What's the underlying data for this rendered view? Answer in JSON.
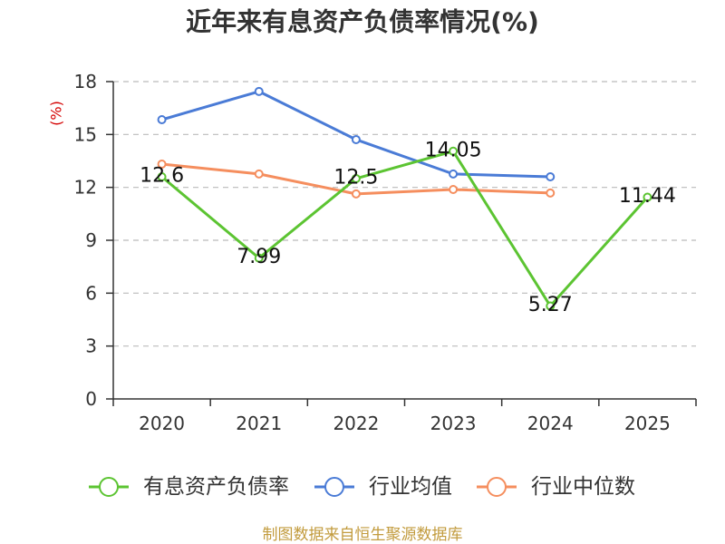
{
  "footer": "制图数据来自恒生聚源数据库",
  "chart_data": {
    "type": "line",
    "title": "近年来有息资产负债率情况(%)",
    "xlabel": "",
    "ylabel": "(%)",
    "categories": [
      "2020",
      "2021",
      "2022",
      "2023",
      "2024",
      "2025"
    ],
    "ylim": [
      0,
      18
    ],
    "yticks": [
      0,
      3,
      6,
      9,
      12,
      15,
      18
    ],
    "grid": true,
    "legend_position": "bottom",
    "series": [
      {
        "name": "有息资产负债率",
        "color": "#5cc432",
        "data_labels": true,
        "values": [
          12.6,
          7.99,
          12.5,
          14.05,
          5.27,
          11.44
        ]
      },
      {
        "name": "行业均值",
        "color": "#4a7bd6",
        "data_labels": false,
        "values": [
          15.84,
          17.44,
          14.71,
          12.76,
          12.6,
          null
        ]
      },
      {
        "name": "行业中位数",
        "color": "#f58e5e",
        "data_labels": false,
        "values": [
          13.32,
          12.76,
          11.63,
          11.88,
          11.68,
          null
        ]
      }
    ]
  }
}
